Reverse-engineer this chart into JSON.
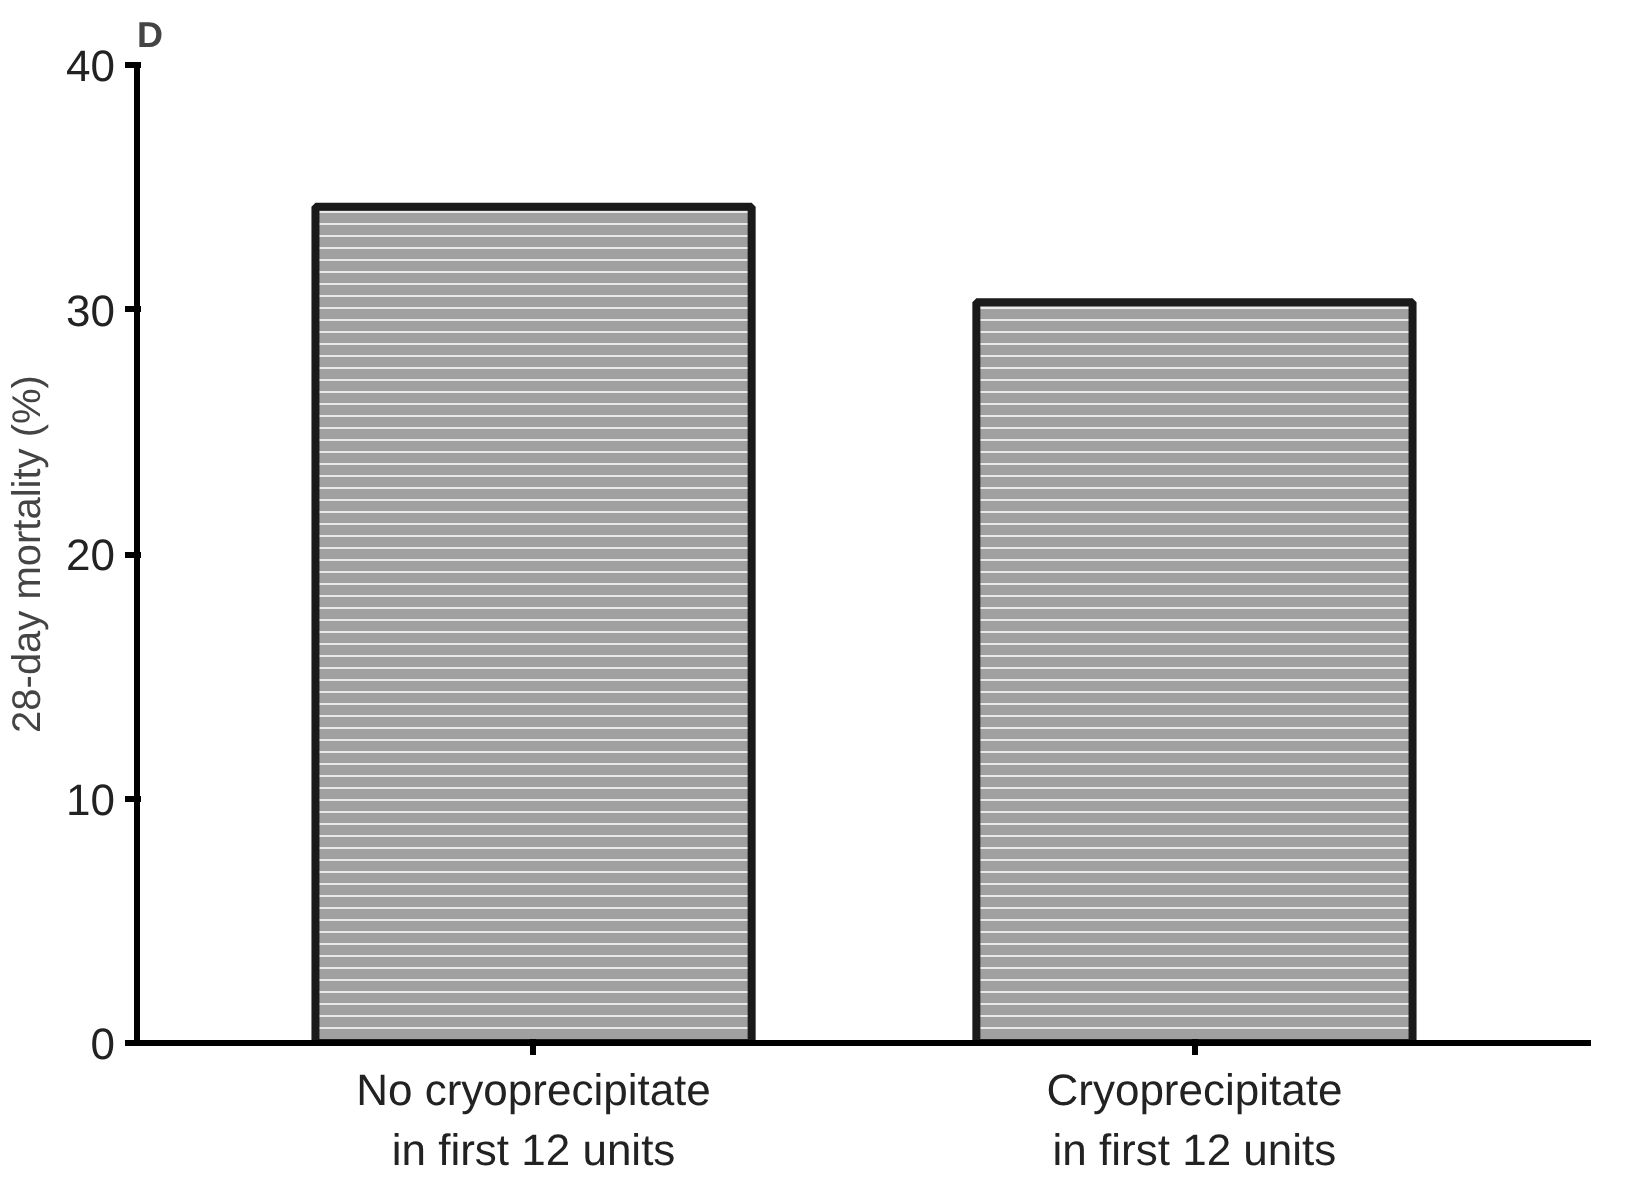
{
  "chart_data": {
    "type": "bar",
    "title": "D",
    "ylabel": "28-day mortality (%)",
    "categories": [
      "No cryoprecipitate\nin first 12 units",
      "Cryoprecipitate\nin first 12 units"
    ],
    "values": [
      34.2,
      30.3
    ],
    "color": "#a0a0a0",
    "ylim": [
      0,
      40
    ],
    "yticks": [
      0,
      10,
      20,
      30,
      40
    ],
    "grid": false
  }
}
